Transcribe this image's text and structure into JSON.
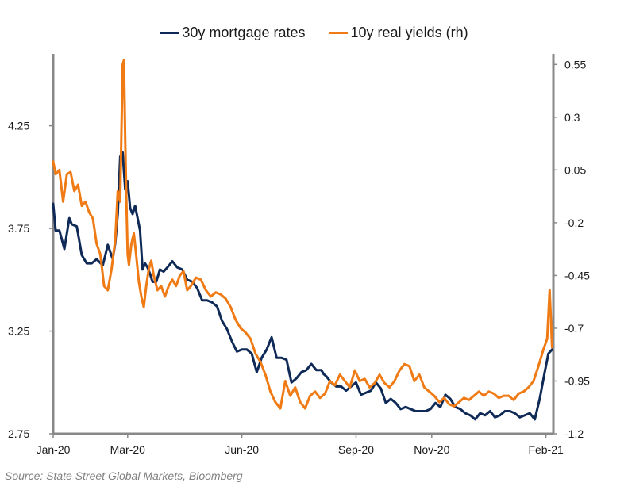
{
  "legend": {
    "series1": "30y mortgage rates",
    "series2": "10y real yields (rh)"
  },
  "source": "Source: State Street Global Markets, Bloomberg",
  "colors": {
    "mortgage": "#0f2a57",
    "real_yields": "#f07a14",
    "axis": "#888888"
  },
  "chart_data": {
    "type": "line",
    "title": "",
    "xlabel": "",
    "x_tick_labels": [
      "Jan-20",
      "Mar-20",
      "Jun-20",
      "Sep-20",
      "Nov-20",
      "Feb-21"
    ],
    "x_ticks": [
      "2020-01-01",
      "2020-03-01",
      "2020-06-01",
      "2020-09-01",
      "2020-11-01",
      "2021-02-01"
    ],
    "x_range": [
      "2020-01-01",
      "2021-02-07"
    ],
    "left_axis": {
      "ticks": [
        "2.75",
        "3.25",
        "3.75",
        "4.25"
      ],
      "ylim": [
        2.75,
        4.6
      ]
    },
    "right_axis": {
      "ticks": [
        "-1.2",
        "-0.95",
        "-0.7",
        "-0.45",
        "-0.2",
        "0.05",
        "0.3",
        "0.55"
      ],
      "ylim": [
        -1.2,
        0.6
      ]
    },
    "grid": false,
    "legend_position": "top-center",
    "series": [
      {
        "name": "30y mortgage rates",
        "axis": "left",
        "x": [
          "2020-01-01",
          "2020-01-03",
          "2020-01-06",
          "2020-01-10",
          "2020-01-14",
          "2020-01-16",
          "2020-01-20",
          "2020-01-24",
          "2020-01-28",
          "2020-02-01",
          "2020-02-05",
          "2020-02-10",
          "2020-02-14",
          "2020-02-18",
          "2020-02-20",
          "2020-02-22",
          "2020-02-24",
          "2020-02-26",
          "2020-02-28",
          "2020-03-01",
          "2020-03-03",
          "2020-03-05",
          "2020-03-07",
          "2020-03-09",
          "2020-03-11",
          "2020-03-13",
          "2020-03-15",
          "2020-03-17",
          "2020-03-19",
          "2020-03-21",
          "2020-03-24",
          "2020-03-27",
          "2020-03-30",
          "2020-04-02",
          "2020-04-06",
          "2020-04-10",
          "2020-04-14",
          "2020-04-18",
          "2020-04-22",
          "2020-04-26",
          "2020-04-30",
          "2020-05-04",
          "2020-05-08",
          "2020-05-12",
          "2020-05-16",
          "2020-05-20",
          "2020-05-24",
          "2020-05-28",
          "2020-06-01",
          "2020-06-05",
          "2020-06-09",
          "2020-06-13",
          "2020-06-17",
          "2020-06-21",
          "2020-06-25",
          "2020-06-29",
          "2020-07-03",
          "2020-07-07",
          "2020-07-11",
          "2020-07-15",
          "2020-07-19",
          "2020-07-23",
          "2020-07-27",
          "2020-07-31",
          "2020-08-04",
          "2020-08-06",
          "2020-08-08",
          "2020-08-12",
          "2020-08-16",
          "2020-08-20",
          "2020-08-24",
          "2020-08-28",
          "2020-09-01",
          "2020-09-05",
          "2020-09-09",
          "2020-09-13",
          "2020-09-17",
          "2020-09-21",
          "2020-09-25",
          "2020-09-29",
          "2020-10-03",
          "2020-10-07",
          "2020-10-11",
          "2020-10-15",
          "2020-10-19",
          "2020-10-23",
          "2020-10-27",
          "2020-10-31",
          "2020-11-04",
          "2020-11-08",
          "2020-11-12",
          "2020-11-16",
          "2020-11-20",
          "2020-11-24",
          "2020-11-28",
          "2020-12-02",
          "2020-12-06",
          "2020-12-10",
          "2020-12-14",
          "2020-12-18",
          "2020-12-22",
          "2020-12-26",
          "2020-12-30",
          "2021-01-03",
          "2021-01-07",
          "2021-01-11",
          "2021-01-15",
          "2021-01-19",
          "2021-01-23",
          "2021-01-27",
          "2021-01-31",
          "2021-02-03",
          "2021-02-06"
        ],
        "values": [
          3.87,
          3.74,
          3.74,
          3.65,
          3.8,
          3.77,
          3.76,
          3.62,
          3.58,
          3.58,
          3.6,
          3.57,
          3.67,
          3.6,
          3.68,
          3.82,
          4.1,
          4.12,
          3.94,
          3.98,
          3.85,
          3.82,
          3.86,
          3.8,
          3.74,
          3.55,
          3.58,
          3.56,
          3.53,
          3.49,
          3.49,
          3.55,
          3.54,
          3.56,
          3.59,
          3.56,
          3.55,
          3.5,
          3.49,
          3.46,
          3.4,
          3.4,
          3.39,
          3.37,
          3.3,
          3.26,
          3.2,
          3.15,
          3.16,
          3.16,
          3.14,
          3.05,
          3.12,
          3.16,
          3.22,
          3.12,
          3.12,
          3.11,
          3.0,
          3.02,
          3.05,
          3.06,
          3.09,
          3.06,
          3.06,
          3.04,
          3.03,
          3.0,
          2.98,
          2.98,
          2.96,
          2.98,
          3.0,
          2.94,
          2.95,
          2.96,
          3.0,
          2.97,
          2.9,
          2.92,
          2.9,
          2.87,
          2.88,
          2.87,
          2.86,
          2.86,
          2.86,
          2.87,
          2.9,
          2.88,
          2.94,
          2.92,
          2.88,
          2.87,
          2.85,
          2.84,
          2.82,
          2.85,
          2.84,
          2.86,
          2.83,
          2.84,
          2.86,
          2.86,
          2.85,
          2.83,
          2.84,
          2.85,
          2.82,
          2.92,
          3.05,
          3.14,
          3.16
        ]
      },
      {
        "name": "10y real yields (rh)",
        "axis": "right",
        "x": [
          "2020-01-01",
          "2020-01-03",
          "2020-01-06",
          "2020-01-09",
          "2020-01-12",
          "2020-01-15",
          "2020-01-18",
          "2020-01-21",
          "2020-01-24",
          "2020-01-27",
          "2020-01-30",
          "2020-02-02",
          "2020-02-05",
          "2020-02-08",
          "2020-02-11",
          "2020-02-14",
          "2020-02-17",
          "2020-02-20",
          "2020-02-22",
          "2020-02-24",
          "2020-02-26",
          "2020-02-27",
          "2020-02-28",
          "2020-02-29",
          "2020-03-01",
          "2020-03-02",
          "2020-03-04",
          "2020-03-06",
          "2020-03-08",
          "2020-03-10",
          "2020-03-12",
          "2020-03-14",
          "2020-03-16",
          "2020-03-18",
          "2020-03-20",
          "2020-03-22",
          "2020-03-25",
          "2020-03-28",
          "2020-03-31",
          "2020-04-03",
          "2020-04-06",
          "2020-04-09",
          "2020-04-12",
          "2020-04-15",
          "2020-04-18",
          "2020-04-21",
          "2020-04-25",
          "2020-04-29",
          "2020-05-03",
          "2020-05-07",
          "2020-05-11",
          "2020-05-15",
          "2020-05-19",
          "2020-05-23",
          "2020-05-27",
          "2020-05-31",
          "2020-06-04",
          "2020-06-08",
          "2020-06-12",
          "2020-06-16",
          "2020-06-20",
          "2020-06-24",
          "2020-06-28",
          "2020-07-02",
          "2020-07-06",
          "2020-07-10",
          "2020-07-14",
          "2020-07-18",
          "2020-07-22",
          "2020-07-26",
          "2020-07-30",
          "2020-08-03",
          "2020-08-07",
          "2020-08-11",
          "2020-08-15",
          "2020-08-19",
          "2020-08-23",
          "2020-08-27",
          "2020-08-31",
          "2020-09-04",
          "2020-09-08",
          "2020-09-12",
          "2020-09-16",
          "2020-09-20",
          "2020-09-24",
          "2020-09-28",
          "2020-10-02",
          "2020-10-06",
          "2020-10-10",
          "2020-10-14",
          "2020-10-18",
          "2020-10-22",
          "2020-10-26",
          "2020-10-30",
          "2020-11-03",
          "2020-11-07",
          "2020-11-11",
          "2020-11-15",
          "2020-11-19",
          "2020-11-23",
          "2020-11-27",
          "2020-12-01",
          "2020-12-05",
          "2020-12-09",
          "2020-12-13",
          "2020-12-17",
          "2020-12-21",
          "2020-12-25",
          "2020-12-29",
          "2021-01-02",
          "2021-01-06",
          "2021-01-10",
          "2021-01-14",
          "2021-01-18",
          "2021-01-22",
          "2021-01-26",
          "2021-01-30",
          "2021-02-02",
          "2021-02-04",
          "2021-02-06"
        ],
        "values": [
          0.09,
          0.03,
          0.05,
          -0.1,
          0.03,
          0.04,
          -0.05,
          -0.02,
          -0.12,
          -0.1,
          -0.15,
          -0.18,
          -0.3,
          -0.35,
          -0.5,
          -0.52,
          -0.42,
          -0.28,
          -0.05,
          -0.1,
          0.55,
          0.57,
          0.2,
          -0.1,
          -0.35,
          -0.4,
          -0.3,
          -0.25,
          -0.36,
          -0.48,
          -0.55,
          -0.6,
          -0.5,
          -0.42,
          -0.38,
          -0.45,
          -0.52,
          -0.5,
          -0.55,
          -0.5,
          -0.47,
          -0.5,
          -0.45,
          -0.43,
          -0.52,
          -0.5,
          -0.46,
          -0.47,
          -0.52,
          -0.55,
          -0.53,
          -0.54,
          -0.56,
          -0.6,
          -0.66,
          -0.7,
          -0.72,
          -0.75,
          -0.82,
          -0.86,
          -0.92,
          -1.0,
          -1.05,
          -1.08,
          -0.95,
          -1.02,
          -0.98,
          -1.05,
          -1.08,
          -1.02,
          -1.0,
          -1.03,
          -1.01,
          -0.95,
          -0.97,
          -0.92,
          -0.95,
          -0.98,
          -0.9,
          -0.95,
          -0.94,
          -0.98,
          -0.96,
          -0.92,
          -0.96,
          -0.98,
          -0.95,
          -0.9,
          -0.87,
          -0.88,
          -0.95,
          -0.92,
          -0.98,
          -1.0,
          -1.02,
          -1.05,
          -1.03,
          -1.06,
          -1.07,
          -1.05,
          -1.03,
          -1.04,
          -1.02,
          -1.0,
          -1.02,
          -1.0,
          -1.01,
          -1.03,
          -1.02,
          -1.02,
          -1.04,
          -1.01,
          -1.0,
          -0.98,
          -0.95,
          -0.88,
          -0.8,
          -0.75,
          -0.52,
          -0.79
        ]
      }
    ]
  }
}
